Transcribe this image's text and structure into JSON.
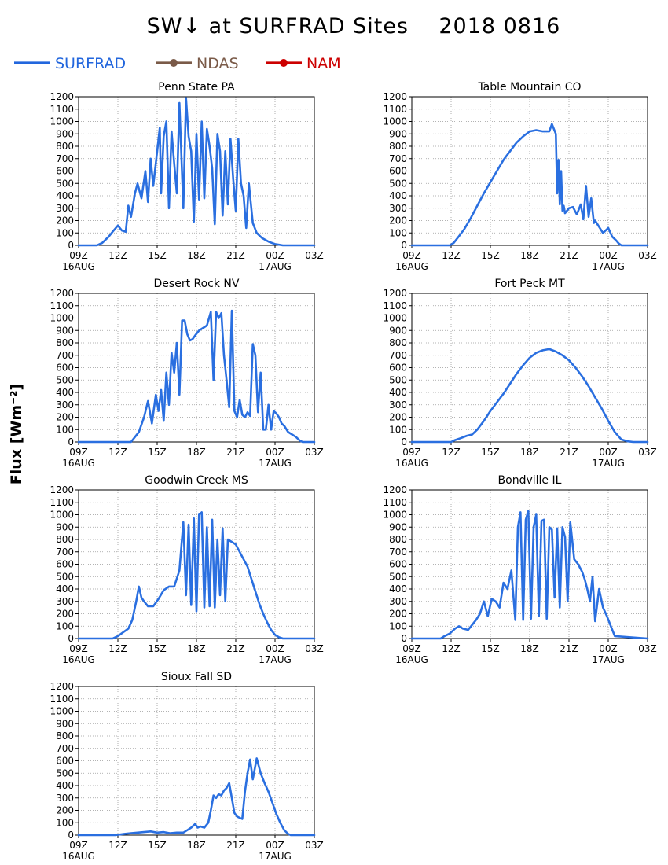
{
  "title": "SW↓ at SURFRAD Sites    2018 0816",
  "ylabel": "Flux [Wm⁻²]",
  "legend": [
    {
      "label": "SURFRAD",
      "color": "#2266dd",
      "marker": false
    },
    {
      "label": "NDAS",
      "color": "#7a5a48",
      "marker": true
    },
    {
      "label": "NAM",
      "color": "#cc0000",
      "marker": true
    }
  ],
  "colors": {
    "surfrad": "#2a6fe0",
    "ndas": "#7a5a48",
    "nam": "#cc0000"
  },
  "chart_data": [
    {
      "type": "line",
      "title": "Penn State PA",
      "x_unit": "hours since 16AUG 00Z",
      "xticks": [
        "09Z",
        "12Z",
        "15Z",
        "18Z",
        "21Z",
        "00Z",
        "03Z"
      ],
      "xdates": {
        "09Z": "16AUG",
        "00Z": "17AUG"
      },
      "xlim": [
        9,
        27
      ],
      "yticks": [
        0,
        100,
        200,
        300,
        400,
        500,
        600,
        700,
        800,
        900,
        1000,
        1100,
        1200
      ],
      "ylim": [
        0,
        1200
      ],
      "grid": true,
      "series": [
        {
          "name": "SURFRAD",
          "x": [
            9,
            10.4,
            10.8,
            11.3,
            11.6,
            12.0,
            12.3,
            12.6,
            12.8,
            13.0,
            13.3,
            13.5,
            13.8,
            14.1,
            14.3,
            14.5,
            14.7,
            15.0,
            15.2,
            15.3,
            15.5,
            15.7,
            15.9,
            16.1,
            16.3,
            16.5,
            16.7,
            17.0,
            17.2,
            17.4,
            17.6,
            17.8,
            18.0,
            18.2,
            18.4,
            18.6,
            18.8,
            19.0,
            19.2,
            19.4,
            19.6,
            19.8,
            20.0,
            20.2,
            20.4,
            20.6,
            20.8,
            21.0,
            21.2,
            21.4,
            21.6,
            21.8,
            22.0,
            22.3,
            22.6,
            23.0,
            23.5,
            24.0,
            24.3,
            24.6,
            25.0,
            27.0
          ],
          "y": [
            0,
            0,
            20,
            70,
            110,
            160,
            120,
            110,
            320,
            230,
            420,
            500,
            380,
            600,
            350,
            700,
            480,
            760,
            950,
            420,
            880,
            1000,
            300,
            920,
            660,
            420,
            1150,
            300,
            1190,
            880,
            760,
            190,
            900,
            370,
            1000,
            380,
            940,
            800,
            620,
            170,
            900,
            760,
            240,
            760,
            330,
            860,
            540,
            280,
            860,
            500,
            400,
            140,
            500,
            180,
            100,
            60,
            30,
            10,
            5,
            0,
            0,
            0
          ]
        }
      ]
    },
    {
      "type": "line",
      "title": "Table Mountain CO",
      "x_unit": "hours since 16AUG 00Z",
      "xticks": [
        "09Z",
        "12Z",
        "15Z",
        "18Z",
        "21Z",
        "00Z",
        "03Z"
      ],
      "xdates": {
        "09Z": "16AUG",
        "00Z": "17AUG"
      },
      "xlim": [
        9,
        27
      ],
      "yticks": [
        0,
        100,
        200,
        300,
        400,
        500,
        600,
        700,
        800,
        900,
        1000,
        1100,
        1200
      ],
      "ylim": [
        0,
        1200
      ],
      "grid": true,
      "series": [
        {
          "name": "SURFRAD",
          "x": [
            9,
            11.9,
            12.2,
            12.5,
            13.0,
            13.5,
            14.0,
            14.5,
            15.0,
            15.5,
            16.0,
            16.5,
            17.0,
            17.5,
            18.0,
            18.5,
            19.0,
            19.5,
            19.7,
            20.0,
            20.1,
            20.2,
            20.3,
            20.4,
            20.5,
            20.6,
            20.7,
            21.0,
            21.3,
            21.6,
            21.9,
            22.1,
            22.3,
            22.5,
            22.7,
            22.9,
            23.0,
            23.3,
            23.6,
            24.0,
            24.3,
            24.6,
            24.8,
            25.0,
            25.2,
            27.0
          ],
          "y": [
            0,
            0,
            20,
            60,
            130,
            220,
            320,
            420,
            510,
            600,
            690,
            760,
            830,
            880,
            920,
            930,
            920,
            920,
            980,
            900,
            420,
            690,
            330,
            600,
            280,
            320,
            260,
            300,
            310,
            250,
            330,
            210,
            480,
            230,
            380,
            180,
            200,
            150,
            100,
            140,
            70,
            40,
            15,
            0,
            0,
            0
          ]
        }
      ]
    },
    {
      "type": "line",
      "title": "Desert Rock NV",
      "x_unit": "hours since 16AUG 00Z",
      "xticks": [
        "09Z",
        "12Z",
        "15Z",
        "18Z",
        "21Z",
        "00Z",
        "03Z"
      ],
      "xdates": {
        "09Z": "16AUG",
        "00Z": "17AUG"
      },
      "xlim": [
        9,
        27
      ],
      "yticks": [
        0,
        100,
        200,
        300,
        400,
        500,
        600,
        700,
        800,
        900,
        1000,
        1100,
        1200
      ],
      "ylim": [
        0,
        1200
      ],
      "grid": true,
      "series": [
        {
          "name": "SURFRAD",
          "x": [
            9,
            13.0,
            13.3,
            13.6,
            14.0,
            14.3,
            14.6,
            14.9,
            15.1,
            15.3,
            15.5,
            15.7,
            15.9,
            16.1,
            16.3,
            16.5,
            16.7,
            16.9,
            17.1,
            17.3,
            17.5,
            17.7,
            17.9,
            18.2,
            18.5,
            18.8,
            19.1,
            19.3,
            19.5,
            19.7,
            19.9,
            20.1,
            20.3,
            20.5,
            20.7,
            20.9,
            21.1,
            21.3,
            21.5,
            21.7,
            21.9,
            22.1,
            22.3,
            22.5,
            22.7,
            22.9,
            23.1,
            23.3,
            23.5,
            23.7,
            23.9,
            24.1,
            24.3,
            24.5,
            24.7,
            25.0,
            25.3,
            25.6,
            25.9,
            26.1,
            27.0
          ],
          "y": [
            0,
            0,
            40,
            80,
            200,
            330,
            150,
            380,
            250,
            420,
            170,
            560,
            300,
            720,
            560,
            800,
            380,
            980,
            980,
            870,
            820,
            830,
            860,
            900,
            920,
            940,
            1050,
            500,
            1050,
            1000,
            1040,
            700,
            500,
            280,
            1060,
            250,
            200,
            340,
            220,
            200,
            240,
            210,
            790,
            700,
            240,
            560,
            100,
            100,
            300,
            100,
            250,
            230,
            200,
            150,
            130,
            80,
            60,
            40,
            10,
            0,
            0
          ]
        }
      ]
    },
    {
      "type": "line",
      "title": "Fort Peck MT",
      "x_unit": "hours since 16AUG 00Z",
      "xticks": [
        "09Z",
        "12Z",
        "15Z",
        "18Z",
        "21Z",
        "00Z",
        "03Z"
      ],
      "xdates": {
        "09Z": "16AUG",
        "00Z": "17AUG"
      },
      "xlim": [
        9,
        27
      ],
      "yticks": [
        0,
        100,
        200,
        300,
        400,
        500,
        600,
        700,
        800,
        900,
        1000,
        1100,
        1200
      ],
      "ylim": [
        0,
        1200
      ],
      "grid": true,
      "series": [
        {
          "name": "SURFRAD",
          "x": [
            9,
            12.0,
            12.3,
            12.7,
            13.2,
            13.6,
            14.0,
            14.5,
            15.0,
            15.5,
            16.0,
            16.5,
            17.0,
            17.5,
            18.0,
            18.5,
            19.0,
            19.5,
            20.0,
            20.5,
            21.0,
            21.5,
            22.0,
            22.5,
            23.0,
            23.5,
            24.0,
            24.5,
            25.0,
            25.5,
            25.9,
            27.0
          ],
          "y": [
            0,
            0,
            15,
            30,
            50,
            60,
            100,
            170,
            250,
            320,
            390,
            470,
            550,
            620,
            680,
            720,
            740,
            750,
            730,
            700,
            660,
            600,
            530,
            450,
            360,
            270,
            170,
            80,
            20,
            5,
            0,
            0
          ]
        }
      ]
    },
    {
      "type": "line",
      "title": "Goodwin Creek MS",
      "x_unit": "hours since 16AUG 00Z",
      "xticks": [
        "09Z",
        "12Z",
        "15Z",
        "18Z",
        "21Z",
        "00Z",
        "03Z"
      ],
      "xdates": {
        "09Z": "16AUG",
        "00Z": "17AUG"
      },
      "xlim": [
        9,
        27
      ],
      "yticks": [
        0,
        100,
        200,
        300,
        400,
        500,
        600,
        700,
        800,
        900,
        1000,
        1100,
        1200
      ],
      "ylim": [
        0,
        1200
      ],
      "grid": true,
      "series": [
        {
          "name": "SURFRAD",
          "x": [
            9,
            11.6,
            12.0,
            12.4,
            12.8,
            13.1,
            13.4,
            13.6,
            13.8,
            14.0,
            14.3,
            14.7,
            15.1,
            15.5,
            15.9,
            16.3,
            16.7,
            17.0,
            17.2,
            17.4,
            17.6,
            17.8,
            18.0,
            18.2,
            18.4,
            18.6,
            18.8,
            19.0,
            19.2,
            19.4,
            19.6,
            19.8,
            20.0,
            20.2,
            20.4,
            20.7,
            21.0,
            21.3,
            21.6,
            21.9,
            22.2,
            22.5,
            22.8,
            23.1,
            23.4,
            23.7,
            24.0,
            24.3,
            24.6,
            25.0,
            27.0
          ],
          "y": [
            0,
            0,
            20,
            50,
            80,
            150,
            300,
            420,
            330,
            300,
            260,
            260,
            320,
            390,
            420,
            420,
            550,
            940,
            350,
            920,
            270,
            970,
            220,
            1000,
            1020,
            250,
            900,
            260,
            960,
            250,
            800,
            350,
            890,
            300,
            800,
            780,
            760,
            700,
            640,
            580,
            480,
            380,
            280,
            200,
            130,
            70,
            30,
            10,
            0,
            0,
            0
          ]
        }
      ]
    },
    {
      "type": "line",
      "title": "Bondville IL",
      "x_unit": "hours since 16AUG 00Z",
      "xticks": [
        "09Z",
        "12Z",
        "15Z",
        "18Z",
        "21Z",
        "00Z",
        "03Z"
      ],
      "xdates": {
        "09Z": "16AUG",
        "00Z": "17AUG"
      },
      "xlim": [
        9,
        27
      ],
      "yticks": [
        0,
        100,
        200,
        300,
        400,
        500,
        600,
        700,
        800,
        900,
        1000,
        1100,
        1200
      ],
      "ylim": [
        0,
        1200
      ],
      "grid": true,
      "series": [
        {
          "name": "SURFRAD",
          "x": [
            9,
            11.2,
            11.5,
            11.9,
            12.3,
            12.6,
            12.9,
            13.3,
            13.6,
            13.9,
            14.2,
            14.5,
            14.8,
            15.1,
            15.4,
            15.7,
            16.0,
            16.3,
            16.6,
            16.9,
            17.1,
            17.3,
            17.5,
            17.7,
            17.9,
            18.1,
            18.3,
            18.5,
            18.7,
            18.9,
            19.1,
            19.3,
            19.5,
            19.7,
            19.9,
            20.1,
            20.3,
            20.5,
            20.7,
            20.9,
            21.1,
            21.4,
            21.7,
            22.0,
            22.2,
            22.4,
            22.6,
            22.8,
            23.0,
            23.3,
            23.6,
            23.9,
            24.2,
            24.5,
            27.0
          ],
          "y": [
            0,
            0,
            20,
            40,
            80,
            100,
            80,
            70,
            110,
            150,
            200,
            300,
            180,
            320,
            300,
            250,
            450,
            400,
            550,
            150,
            900,
            1020,
            150,
            960,
            1030,
            160,
            900,
            1000,
            180,
            950,
            960,
            160,
            900,
            880,
            330,
            890,
            250,
            900,
            820,
            300,
            940,
            640,
            600,
            540,
            480,
            400,
            300,
            500,
            140,
            400,
            250,
            180,
            100,
            20,
            0
          ]
        }
      ]
    },
    {
      "type": "line",
      "title": "Sioux Fall SD",
      "x_unit": "hours since 16AUG 00Z",
      "xticks": [
        "09Z",
        "12Z",
        "15Z",
        "18Z",
        "21Z",
        "00Z",
        "03Z"
      ],
      "xdates": {
        "09Z": "16AUG",
        "00Z": "17AUG"
      },
      "xlim": [
        9,
        27
      ],
      "yticks": [
        0,
        100,
        200,
        300,
        400,
        500,
        600,
        700,
        800,
        900,
        1000,
        1100,
        1200
      ],
      "ylim": [
        0,
        1200
      ],
      "grid": true,
      "series": [
        {
          "name": "SURFRAD",
          "x": [
            9,
            11.8,
            12.5,
            13.0,
            13.5,
            14.0,
            14.5,
            15.0,
            15.5,
            16.0,
            16.5,
            17.0,
            17.3,
            17.6,
            17.9,
            18.1,
            18.3,
            18.6,
            18.9,
            19.1,
            19.3,
            19.5,
            19.7,
            19.9,
            20.1,
            20.3,
            20.5,
            20.7,
            20.9,
            21.1,
            21.3,
            21.5,
            21.7,
            21.9,
            22.1,
            22.3,
            22.6,
            22.9,
            23.2,
            23.5,
            23.8,
            24.1,
            24.4,
            24.7,
            25.0,
            25.2,
            27.0
          ],
          "y": [
            0,
            0,
            10,
            15,
            20,
            25,
            30,
            20,
            25,
            15,
            20,
            20,
            40,
            60,
            90,
            60,
            70,
            60,
            100,
            200,
            320,
            300,
            330,
            320,
            360,
            380,
            420,
            300,
            180,
            150,
            140,
            130,
            350,
            500,
            610,
            450,
            620,
            500,
            420,
            350,
            260,
            170,
            100,
            40,
            10,
            0,
            0
          ]
        }
      ]
    }
  ]
}
